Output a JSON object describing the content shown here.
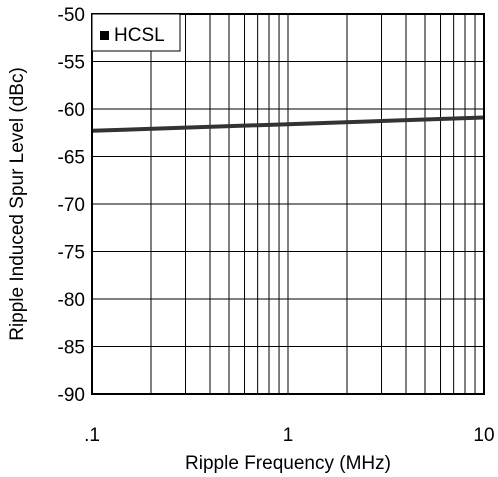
{
  "chart_data": {
    "type": "line",
    "xlabel": "Ripple Frequency (MHz)",
    "ylabel": "Ripple Induced Spur Level (dBc)",
    "x_scale": "log",
    "xlim": [
      0.1,
      10
    ],
    "ylim": [
      -90,
      -50
    ],
    "x_tick_values": [
      0.1,
      1,
      10
    ],
    "x_tick_labels": [
      ".1",
      "1",
      "10"
    ],
    "y_ticks": [
      -50,
      -55,
      -60,
      -65,
      -70,
      -75,
      -80,
      -85,
      -90
    ],
    "grid": true,
    "legend_position": "top-left",
    "series": [
      {
        "name": "HCSL",
        "color": "#333333",
        "x": [
          0.1,
          1,
          10
        ],
        "y": [
          -62.3,
          -61.6,
          -60.9
        ]
      }
    ]
  }
}
